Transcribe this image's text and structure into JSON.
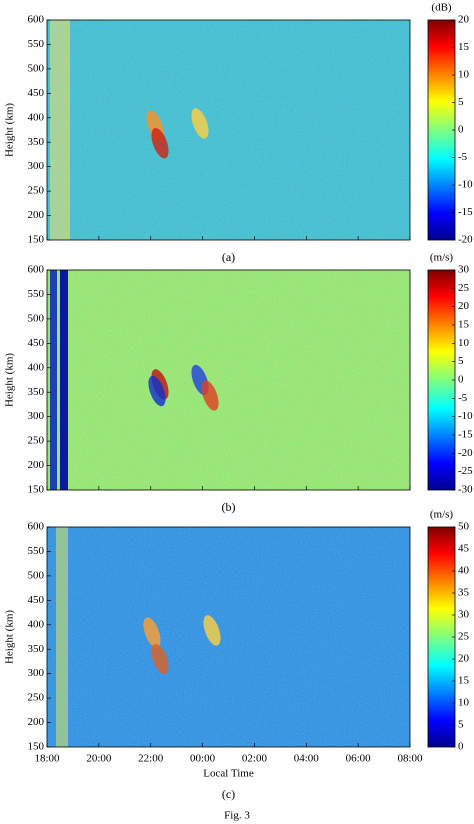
{
  "chart_data": [
    {
      "type": "heatmap",
      "y_label": "Height (km)",
      "ylim": [
        150,
        600
      ],
      "yticks": [
        150,
        200,
        250,
        300,
        350,
        400,
        450,
        500,
        550,
        600
      ],
      "color": "#35c2d6",
      "panel_label": "(a)",
      "colorbar": {
        "label": "(dB)",
        "lim": [
          -20,
          20
        ],
        "ticks": [
          -20,
          -15,
          -10,
          -5,
          0,
          5,
          10,
          15,
          20
        ]
      }
    },
    {
      "type": "heatmap",
      "y_label": "Height (km)",
      "ylim": [
        150,
        600
      ],
      "yticks": [
        150,
        200,
        250,
        300,
        350,
        400,
        450,
        500,
        550,
        600
      ],
      "color": "#93ef6c",
      "panel_label": "(b)",
      "colorbar": {
        "label": "(m/s)",
        "lim": [
          -30,
          30
        ],
        "ticks": [
          -30,
          -25,
          -20,
          -15,
          -10,
          -5,
          0,
          5,
          10,
          15,
          20,
          25,
          30
        ]
      }
    },
    {
      "type": "heatmap",
      "y_label": "Height (km)",
      "x_label": "Local Time",
      "ylim": [
        150,
        600
      ],
      "yticks": [
        150,
        200,
        250,
        300,
        350,
        400,
        450,
        500,
        550,
        600
      ],
      "xlim": [
        18,
        32
      ],
      "xticks": [
        {
          "value": 18,
          "label": "18:00"
        },
        {
          "value": 20,
          "label": "20:00"
        },
        {
          "value": 22,
          "label": "22:00"
        },
        {
          "value": 24,
          "label": "00:00"
        },
        {
          "value": 26,
          "label": "02:00"
        },
        {
          "value": 28,
          "label": "04:00"
        },
        {
          "value": 30,
          "label": "06:00"
        },
        {
          "value": 32,
          "label": "08:00"
        }
      ],
      "color": "#2190ea",
      "panel_label": "(c)",
      "colorbar": {
        "label": "(m/s)",
        "lim": [
          0,
          50
        ],
        "ticks": [
          0,
          5,
          10,
          15,
          20,
          25,
          30,
          35,
          40,
          45,
          50
        ]
      }
    }
  ],
  "caption": "Fig. 3"
}
